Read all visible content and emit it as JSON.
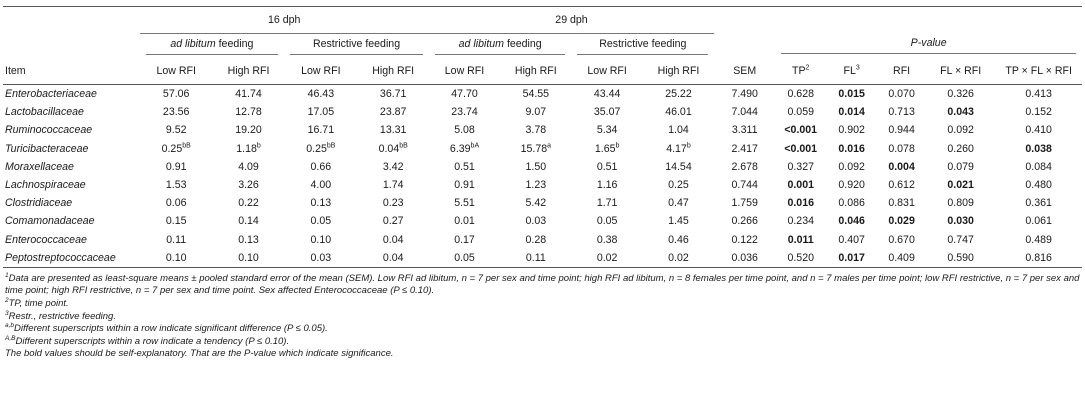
{
  "header": {
    "group_16": "16 dph",
    "group_29": "29 dph",
    "ad_lib_italic": "ad libitum",
    "ad_lib_rest": "feeding",
    "restrictive": "Restrictive feeding",
    "pvalue": "P-value",
    "item": "Item",
    "low_rfi": "Low RFI",
    "high_rfi": "High RFI",
    "sem": "SEM",
    "tp": "TP",
    "tp_sup": "2",
    "fl": "FL",
    "fl_sup": "3",
    "rfi": "RFI",
    "fl_x_rfi": "FL × RFI",
    "tp_x_fl_x_rfi": "TP × FL × RFI"
  },
  "rows": [
    {
      "name": "Enterobacteriaceae",
      "v": [
        {
          "t": "57.06"
        },
        {
          "t": "41.74"
        },
        {
          "t": "46.43"
        },
        {
          "t": "36.71"
        },
        {
          "t": "47.70"
        },
        {
          "t": "54.55"
        },
        {
          "t": "43.44"
        },
        {
          "t": "25.22"
        }
      ],
      "sem": "7.490",
      "p": [
        {
          "t": "0.628"
        },
        {
          "t": "0.015",
          "b": true
        },
        {
          "t": "0.070"
        },
        {
          "t": "0.326"
        },
        {
          "t": "0.413"
        }
      ]
    },
    {
      "name": "Lactobacillaceae",
      "v": [
        {
          "t": "23.56"
        },
        {
          "t": "12.78"
        },
        {
          "t": "17.05"
        },
        {
          "t": "23.87"
        },
        {
          "t": "23.74"
        },
        {
          "t": "9.07"
        },
        {
          "t": "35.07"
        },
        {
          "t": "46.01"
        }
      ],
      "sem": "7.044",
      "p": [
        {
          "t": "0.059"
        },
        {
          "t": "0.014",
          "b": true
        },
        {
          "t": "0.713"
        },
        {
          "t": "0.043",
          "b": true
        },
        {
          "t": "0.152"
        }
      ]
    },
    {
      "name": "Ruminococcaceae",
      "v": [
        {
          "t": "9.52"
        },
        {
          "t": "19.20"
        },
        {
          "t": "16.71"
        },
        {
          "t": "13.31"
        },
        {
          "t": "5.08"
        },
        {
          "t": "3.78"
        },
        {
          "t": "5.34"
        },
        {
          "t": "1.04"
        }
      ],
      "sem": "3.311",
      "p": [
        {
          "t": "<0.001",
          "b": true
        },
        {
          "t": "0.902"
        },
        {
          "t": "0.944"
        },
        {
          "t": "0.092"
        },
        {
          "t": "0.410"
        }
      ]
    },
    {
      "name": "Turicibacteraceae",
      "v": [
        {
          "t": "0.25",
          "s": "bB"
        },
        {
          "t": "1.18",
          "s": "b"
        },
        {
          "t": "0.25",
          "s": "bB"
        },
        {
          "t": "0.04",
          "s": "bB"
        },
        {
          "t": "6.39",
          "s": "bA"
        },
        {
          "t": "15.78",
          "s": "a"
        },
        {
          "t": "1.65",
          "s": "b"
        },
        {
          "t": "4.17",
          "s": "b"
        }
      ],
      "sem": "2.417",
      "p": [
        {
          "t": "<0.001",
          "b": true
        },
        {
          "t": "0.016",
          "b": true
        },
        {
          "t": "0.078"
        },
        {
          "t": "0.260"
        },
        {
          "t": "0.038",
          "b": true
        }
      ]
    },
    {
      "name": "Moraxellaceae",
      "v": [
        {
          "t": "0.91"
        },
        {
          "t": "4.09"
        },
        {
          "t": "0.66"
        },
        {
          "t": "3.42"
        },
        {
          "t": "0.51"
        },
        {
          "t": "1.50"
        },
        {
          "t": "0.51"
        },
        {
          "t": "14.54"
        }
      ],
      "sem": "2.678",
      "p": [
        {
          "t": "0.327"
        },
        {
          "t": "0.092"
        },
        {
          "t": "0.004",
          "b": true
        },
        {
          "t": "0.079"
        },
        {
          "t": "0.084"
        }
      ]
    },
    {
      "name": "Lachnospiraceae",
      "v": [
        {
          "t": "1.53"
        },
        {
          "t": "3.26"
        },
        {
          "t": "4.00"
        },
        {
          "t": "1.74"
        },
        {
          "t": "0.91"
        },
        {
          "t": "1.23"
        },
        {
          "t": "1.16"
        },
        {
          "t": "0.25"
        }
      ],
      "sem": "0.744",
      "p": [
        {
          "t": "0.001",
          "b": true
        },
        {
          "t": "0.920"
        },
        {
          "t": "0.612"
        },
        {
          "t": "0.021",
          "b": true
        },
        {
          "t": "0.480"
        }
      ]
    },
    {
      "name": "Clostridiaceae",
      "v": [
        {
          "t": "0.06"
        },
        {
          "t": "0.22"
        },
        {
          "t": "0.13"
        },
        {
          "t": "0.23"
        },
        {
          "t": "5.51"
        },
        {
          "t": "5.42"
        },
        {
          "t": "1.71"
        },
        {
          "t": "0.47"
        }
      ],
      "sem": "1.759",
      "p": [
        {
          "t": "0.016",
          "b": true
        },
        {
          "t": "0.086"
        },
        {
          "t": "0.831"
        },
        {
          "t": "0.809"
        },
        {
          "t": "0.361"
        }
      ]
    },
    {
      "name": "Comamonadaceae",
      "v": [
        {
          "t": "0.15"
        },
        {
          "t": "0.14"
        },
        {
          "t": "0.05"
        },
        {
          "t": "0.27"
        },
        {
          "t": "0.01"
        },
        {
          "t": "0.03"
        },
        {
          "t": "0.05"
        },
        {
          "t": "1.45"
        }
      ],
      "sem": "0.266",
      "p": [
        {
          "t": "0.234"
        },
        {
          "t": "0.046",
          "b": true
        },
        {
          "t": "0.029",
          "b": true
        },
        {
          "t": "0.030",
          "b": true
        },
        {
          "t": "0.061"
        }
      ]
    },
    {
      "name": "Enterococcaceae",
      "v": [
        {
          "t": "0.11"
        },
        {
          "t": "0.13"
        },
        {
          "t": "0.10"
        },
        {
          "t": "0.04"
        },
        {
          "t": "0.17"
        },
        {
          "t": "0.28"
        },
        {
          "t": "0.38"
        },
        {
          "t": "0.46"
        }
      ],
      "sem": "0.122",
      "p": [
        {
          "t": "0.011",
          "b": true
        },
        {
          "t": "0.407"
        },
        {
          "t": "0.670"
        },
        {
          "t": "0.747"
        },
        {
          "t": "0.489"
        }
      ]
    },
    {
      "name": "Peptostreptococcaceae",
      "v": [
        {
          "t": "0.10"
        },
        {
          "t": "0.10"
        },
        {
          "t": "0.03"
        },
        {
          "t": "0.04"
        },
        {
          "t": "0.05"
        },
        {
          "t": "0.11"
        },
        {
          "t": "0.02"
        },
        {
          "t": "0.02"
        }
      ],
      "sem": "0.036",
      "p": [
        {
          "t": "0.520"
        },
        {
          "t": "0.017",
          "b": true
        },
        {
          "t": "0.409"
        },
        {
          "t": "0.590"
        },
        {
          "t": "0.816"
        }
      ]
    }
  ],
  "footnotes": {
    "n1_sup": "1",
    "n1": "Data are presented as least-square means ± pooled standard error of the mean (SEM). Low RFI ad libitum, n = 7 per sex and time point; high RFI ad libitum, n = 8 females per time point, and n = 7 males per time point; low RFI restrictive, n = 7 per sex and time point; high RFI restrictive, n = 7 per sex and time point. Sex affected Enterococcaceae (P ≤ 0.10).",
    "n2_sup": "2",
    "n2": "TP, time point.",
    "n3_sup": "3",
    "n3": "Restr., restrictive feeding.",
    "n4_sup": "a,b",
    "n4": "Different superscripts within a row indicate significant difference (P ≤ 0.05).",
    "n5_sup": "A,B",
    "n5": "Different superscripts within a row indicate a tendency (P ≤ 0.10).",
    "n6": "The bold values should be self-explanatory. That are the P-value which indicate significance."
  }
}
